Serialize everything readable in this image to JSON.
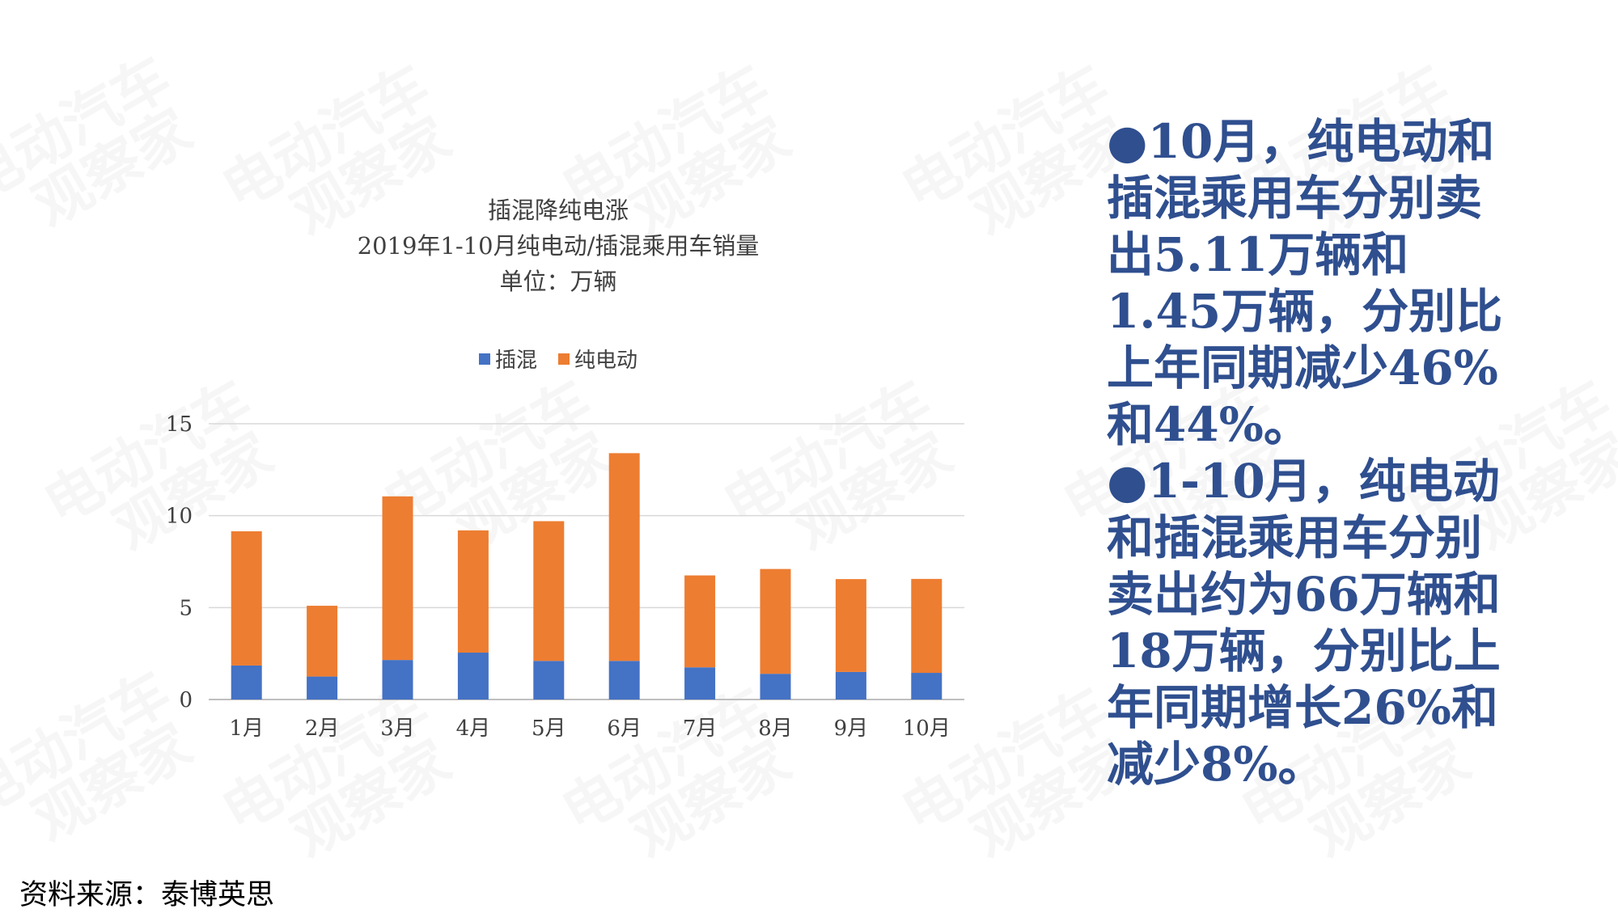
{
  "watermark": {
    "line1": "电动汽车",
    "line2": "观察家"
  },
  "chart_data": {
    "type": "bar",
    "stacked": true,
    "title_lines": [
      "插混降纯电涨",
      "2019年1-10月纯电动/插混乘用车销量",
      "单位：万辆"
    ],
    "categories": [
      "1月",
      "2月",
      "3月",
      "4月",
      "5月",
      "6月",
      "7月",
      "8月",
      "9月",
      "10月"
    ],
    "series": [
      {
        "name": "插混",
        "color": "#4472c4",
        "values": [
          1.85,
          1.25,
          2.15,
          2.55,
          2.1,
          2.1,
          1.75,
          1.4,
          1.5,
          1.45
        ]
      },
      {
        "name": "纯电动",
        "color": "#ed7d31",
        "values": [
          7.3,
          3.85,
          8.9,
          6.65,
          7.6,
          11.3,
          5.0,
          5.7,
          5.05,
          5.11
        ]
      }
    ],
    "ylim": [
      0,
      15
    ],
    "yticks": [
      "0",
      "5",
      "10",
      "15"
    ],
    "grid": true,
    "legend": "top"
  },
  "right_text": [
    "●10月，纯电动和插混乘用车分别卖出5.11万辆和1.45万辆，分别比上年同期减少46%和44%。",
    "●1-10月，纯电动和插混乘用车分别卖出约为66万辆和18万辆，分别比上年同期增长26%和减少8%。"
  ],
  "source": "资料来源：泰博英思"
}
